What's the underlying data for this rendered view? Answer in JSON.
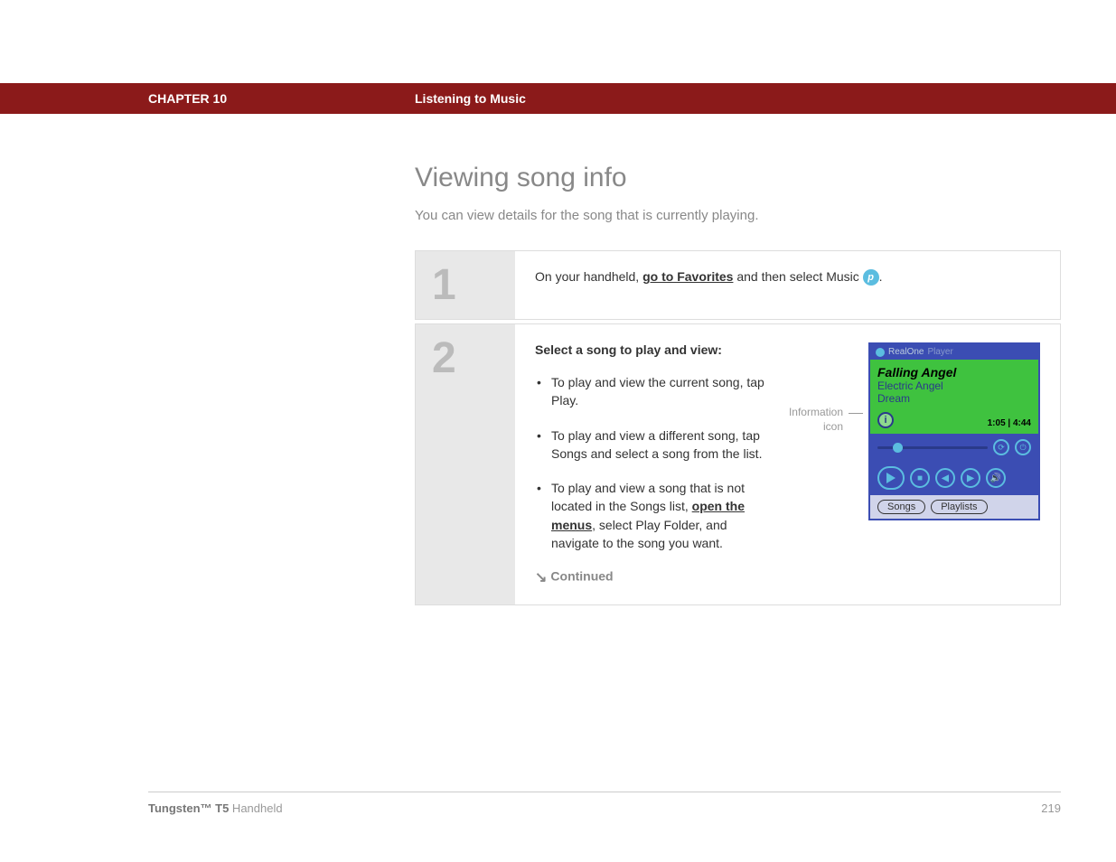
{
  "header": {
    "chapter": "CHAPTER 10",
    "title": "Listening to Music"
  },
  "page": {
    "heading": "Viewing song info",
    "intro": "You can view details for the song that is currently playing."
  },
  "step1": {
    "num": "1",
    "pre": "On your handheld, ",
    "link": "go to Favorites",
    "post": " and then select Music ",
    "badge": "p",
    "end": "."
  },
  "step2": {
    "num": "2",
    "title": "Select a song to play and view:",
    "b1": "To play and view the current song, tap Play.",
    "b2": "To play and view a different song, tap Songs and select a song from the list.",
    "b3a": "To play and view a song that is not located in the Songs list, ",
    "b3link": "open the menus",
    "b3b": ", select Play Folder, and navigate to the song you want.",
    "continued": "Continued"
  },
  "callout": {
    "label": "Information icon"
  },
  "player": {
    "app": "RealOne",
    "app2": "Player",
    "song": "Falling Angel",
    "artist": "Electric Angel",
    "album": "Dream",
    "info": "i",
    "time": "1:05 | 4:44",
    "tabs": {
      "songs": "Songs",
      "playlists": "Playlists"
    },
    "colors": {
      "frame": "#3b4db3",
      "display": "#3fc23f",
      "accent": "#5bbde0"
    }
  },
  "footer": {
    "product_bold": "Tungsten™ T5",
    "product_rest": " Handheld",
    "page": "219"
  }
}
